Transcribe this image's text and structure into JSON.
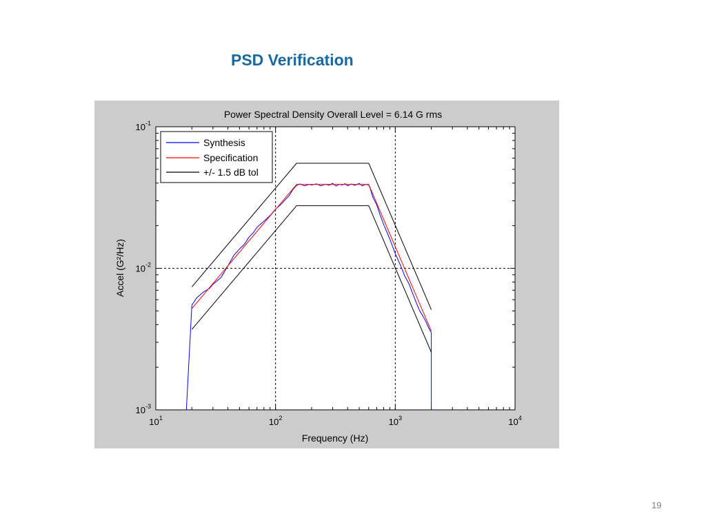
{
  "slide": {
    "title": "PSD Verification",
    "page_number": "19"
  },
  "chart_data": {
    "type": "line",
    "title": "Power Spectral Density  Overall Level =    6.14 G rms",
    "xlabel": "Frequency (Hz)",
    "ylabel": "Accel (G²/Hz)",
    "xscale": "log",
    "yscale": "log",
    "xlim": [
      10,
      10000
    ],
    "ylim": [
      0.001,
      0.1
    ],
    "x_ticks": [
      10,
      100,
      1000,
      10000
    ],
    "x_tick_labels": [
      {
        "base": "10",
        "exp": "1"
      },
      {
        "base": "10",
        "exp": "2"
      },
      {
        "base": "10",
        "exp": "3"
      },
      {
        "base": "10",
        "exp": "4"
      }
    ],
    "y_ticks": [
      0.001,
      0.01,
      0.1
    ],
    "y_tick_labels": [
      {
        "base": "10",
        "exp": "-3"
      },
      {
        "base": "10",
        "exp": "-2"
      },
      {
        "base": "10",
        "exp": "-1"
      }
    ],
    "grid": "dotted at decades",
    "legend_position": "top-left",
    "series": [
      {
        "name": "Synthesis",
        "color": "#0000ff",
        "x": [
          18,
          20,
          22,
          25,
          28,
          30,
          35,
          40,
          45,
          50,
          55,
          60,
          65,
          70,
          80,
          90,
          100,
          110,
          120,
          130,
          140,
          150,
          160,
          175,
          190,
          200,
          220,
          240,
          260,
          280,
          300,
          320,
          340,
          360,
          380,
          400,
          430,
          460,
          500,
          530,
          560,
          600,
          620,
          650,
          700,
          750,
          800,
          900,
          1000,
          1100,
          1200,
          1300,
          1400,
          1500,
          1600,
          1700,
          1800,
          1900,
          2000,
          2000
        ],
        "y": [
          0.001,
          0.0055,
          0.0062,
          0.0068,
          0.0072,
          0.0077,
          0.0086,
          0.0104,
          0.0124,
          0.0137,
          0.0148,
          0.0166,
          0.0178,
          0.0195,
          0.0215,
          0.0236,
          0.0262,
          0.0281,
          0.0304,
          0.0327,
          0.0361,
          0.0386,
          0.0394,
          0.0382,
          0.0392,
          0.0387,
          0.0395,
          0.0382,
          0.0393,
          0.0386,
          0.0398,
          0.0381,
          0.0392,
          0.0388,
          0.0396,
          0.0383,
          0.0394,
          0.0386,
          0.0398,
          0.0382,
          0.0391,
          0.0388,
          0.0362,
          0.0318,
          0.0281,
          0.0236,
          0.0204,
          0.0161,
          0.0127,
          0.0106,
          0.0088,
          0.0078,
          0.0066,
          0.0057,
          0.005,
          0.0046,
          0.0042,
          0.0038,
          0.0035,
          0.001
        ]
      },
      {
        "name": "Specification",
        "color": "#ff0000",
        "x": [
          20,
          150,
          600,
          2000
        ],
        "y": [
          0.0052,
          0.0391,
          0.0391,
          0.0036
        ]
      },
      {
        "name": "+/- 1.5 dB tol",
        "color": "#000000",
        "paths": [
          {
            "x": [
              20,
              150,
              600,
              2000
            ],
            "y": [
              0.0074,
              0.0552,
              0.0552,
              0.0051
            ]
          },
          {
            "x": [
              20,
              150,
              600,
              2000
            ],
            "y": [
              0.0037,
              0.0277,
              0.0277,
              0.00255
            ]
          }
        ]
      }
    ]
  }
}
